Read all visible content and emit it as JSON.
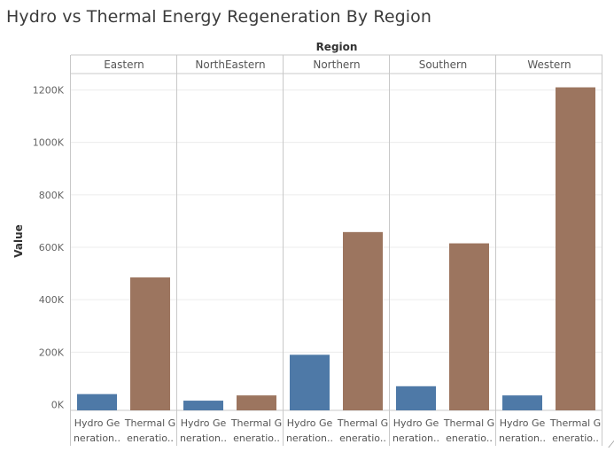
{
  "chart_data": {
    "type": "bar",
    "title": "Hydro vs Thermal Energy Regeneration By Region",
    "column_header": "Region",
    "ylabel": "Value",
    "ylim": [
      0,
      1300000
    ],
    "y_ticks": [
      0,
      200000,
      400000,
      600000,
      800000,
      1000000,
      1200000
    ],
    "y_tick_labels": [
      "0K",
      "200K",
      "400K",
      "600K",
      "800K",
      "1000K",
      "1200K"
    ],
    "grid": true,
    "regions": [
      "Eastern",
      "NorthEastern",
      "Northern",
      "Southern",
      "Western"
    ],
    "categories": [
      {
        "name": "Hydro Generation",
        "label_lines": [
          "Hydro Ge",
          "neration.."
        ],
        "color": "#4e79a7"
      },
      {
        "name": "Thermal Generation",
        "label_lines": [
          "Thermal G",
          "eneratio.."
        ],
        "color": "#9c755f"
      }
    ],
    "values": {
      "Eastern": [
        40000,
        485000
      ],
      "NorthEastern": [
        15000,
        35000
      ],
      "Northern": [
        190000,
        658000
      ],
      "Southern": [
        70000,
        615000
      ],
      "Western": [
        35000,
        1210000
      ]
    }
  },
  "corner_mark": "⁄"
}
